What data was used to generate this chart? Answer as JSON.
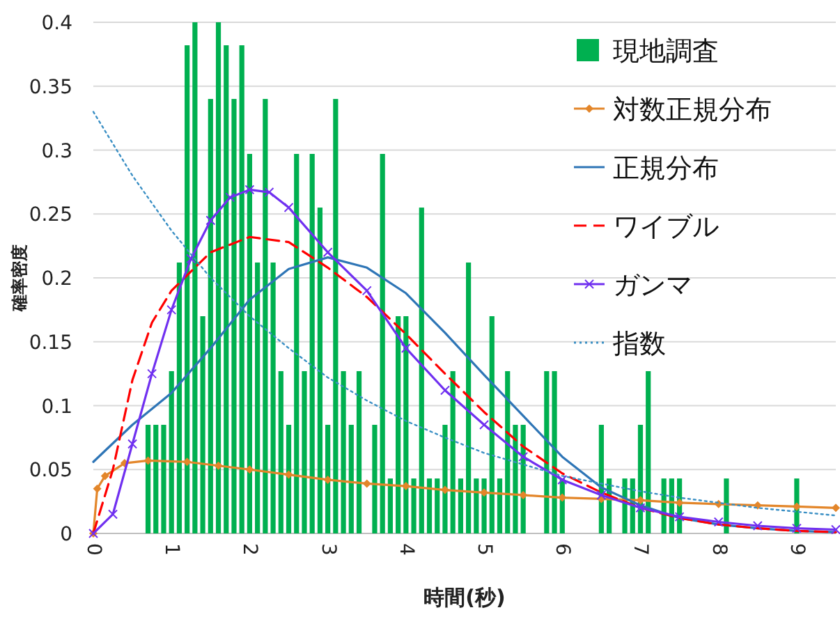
{
  "chart_data": {
    "type": "bar",
    "xlabel": "時間(秒)",
    "ylabel": "確率密度",
    "xlim": [
      0,
      9.5
    ],
    "xticks": [
      0,
      1,
      2,
      3,
      4,
      5,
      6,
      7,
      8,
      9
    ],
    "ylim": [
      0,
      0.4
    ],
    "yticks": [
      0,
      0.05,
      0.1,
      0.15,
      0.2,
      0.25,
      0.3,
      0.35,
      0.4
    ],
    "grid": "y",
    "legend": "top right",
    "series": [
      {
        "name": "現地調査",
        "color": "#00b050",
        "x": [
          0.7,
          0.8,
          0.9,
          1.0,
          1.1,
          1.2,
          1.3,
          1.4,
          1.5,
          1.6,
          1.7,
          1.8,
          1.9,
          2.0,
          2.1,
          2.2,
          2.3,
          2.4,
          2.5,
          2.6,
          2.7,
          2.8,
          2.9,
          3.0,
          3.1,
          3.2,
          3.3,
          3.4,
          3.6,
          3.7,
          3.8,
          3.9,
          4.0,
          4.1,
          4.2,
          4.3,
          4.4,
          4.5,
          4.6,
          4.7,
          4.8,
          4.9,
          5.0,
          5.1,
          5.2,
          5.3,
          5.4,
          5.5,
          5.8,
          5.9,
          6.0,
          6.5,
          6.6,
          6.8,
          6.9,
          7.0,
          7.1,
          7.3,
          7.4,
          7.5,
          8.1,
          9.0
        ],
        "values": [
          0.085,
          0.085,
          0.085,
          0.127,
          0.212,
          0.382,
          0.4,
          0.17,
          0.34,
          0.4,
          0.382,
          0.34,
          0.382,
          0.297,
          0.212,
          0.34,
          0.212,
          0.127,
          0.085,
          0.297,
          0.127,
          0.297,
          0.255,
          0.085,
          0.34,
          0.127,
          0.085,
          0.127,
          0.085,
          0.297,
          0.043,
          0.17,
          0.17,
          0.043,
          0.255,
          0.043,
          0.043,
          0.085,
          0.127,
          0.043,
          0.212,
          0.043,
          0.043,
          0.17,
          0.043,
          0.127,
          0.085,
          0.085,
          0.127,
          0.127,
          0.043,
          0.085,
          0.043,
          0.043,
          0.043,
          0.085,
          0.127,
          0.043,
          0.043,
          0.043,
          0.043,
          0.043
        ]
      },
      {
        "name": "対数正規分布",
        "type": "line",
        "color": "#e3862a",
        "marker": "diamond",
        "line_style": "solid",
        "x": [
          0,
          0.05,
          0.15,
          0.4,
          0.7,
          1.2,
          1.6,
          2,
          2.5,
          3,
          3.5,
          4,
          4.5,
          5,
          5.5,
          6,
          6.5,
          7,
          7.5,
          8,
          8.5,
          9,
          9.5
        ],
        "values": [
          0,
          0.035,
          0.045,
          0.055,
          0.057,
          0.056,
          0.053,
          0.05,
          0.046,
          0.042,
          0.039,
          0.037,
          0.034,
          0.032,
          0.03,
          0.028,
          0.027,
          0.026,
          0.024,
          0.023,
          0.022,
          0.021,
          0.02
        ]
      },
      {
        "name": "正規分布",
        "type": "line",
        "color": "#2e75b6",
        "marker": "none",
        "line_style": "solid",
        "x": [
          0,
          0.5,
          1,
          1.5,
          2,
          2.5,
          3,
          3.5,
          4,
          4.5,
          5,
          5.5,
          6,
          6.5,
          7,
          7.5,
          8,
          8.5,
          9,
          9.5
        ],
        "values": [
          0.056,
          0.085,
          0.11,
          0.145,
          0.183,
          0.207,
          0.216,
          0.208,
          0.188,
          0.157,
          0.124,
          0.092,
          0.06,
          0.036,
          0.022,
          0.012,
          0.007,
          0.004,
          0.002,
          0.001
        ]
      },
      {
        "name": "ワイブル",
        "type": "line",
        "color": "#ff0000",
        "marker": "none",
        "line_style": "dashed",
        "x": [
          0,
          0.25,
          0.5,
          0.75,
          1,
          1.5,
          2,
          2.5,
          3,
          3.5,
          4,
          4.5,
          5,
          5.5,
          6,
          6.5,
          7,
          7.5,
          8,
          8.5,
          9,
          9.5
        ],
        "values": [
          0,
          0.05,
          0.12,
          0.165,
          0.19,
          0.22,
          0.232,
          0.228,
          0.208,
          0.185,
          0.156,
          0.125,
          0.095,
          0.068,
          0.047,
          0.032,
          0.02,
          0.012,
          0.007,
          0.004,
          0.002,
          0.001
        ]
      },
      {
        "name": "ガンマ",
        "type": "line",
        "color": "#7030f0",
        "marker": "cross",
        "line_style": "solid",
        "x": [
          0,
          0.25,
          0.5,
          0.75,
          1,
          1.25,
          1.5,
          1.75,
          2,
          2.25,
          2.5,
          3,
          3.5,
          4,
          4.5,
          5,
          5.5,
          6,
          6.5,
          7,
          7.5,
          8,
          8.5,
          9,
          9.5
        ],
        "values": [
          0,
          0.015,
          0.07,
          0.125,
          0.175,
          0.215,
          0.245,
          0.263,
          0.269,
          0.267,
          0.255,
          0.22,
          0.19,
          0.145,
          0.112,
          0.085,
          0.06,
          0.042,
          0.03,
          0.02,
          0.013,
          0.009,
          0.006,
          0.004,
          0.003
        ]
      },
      {
        "name": "指数",
        "type": "line",
        "color": "#3a8fc4",
        "marker": "none",
        "line_style": "dotted",
        "x": [
          0,
          0.5,
          1,
          1.5,
          2,
          2.5,
          3,
          3.5,
          4,
          4.5,
          5,
          5.5,
          6,
          6.5,
          7,
          7.5,
          8,
          8.5,
          9,
          9.5
        ],
        "values": [
          0.33,
          0.28,
          0.237,
          0.2,
          0.17,
          0.145,
          0.122,
          0.104,
          0.088,
          0.075,
          0.063,
          0.054,
          0.045,
          0.039,
          0.033,
          0.028,
          0.024,
          0.02,
          0.017,
          0.014
        ]
      }
    ]
  }
}
